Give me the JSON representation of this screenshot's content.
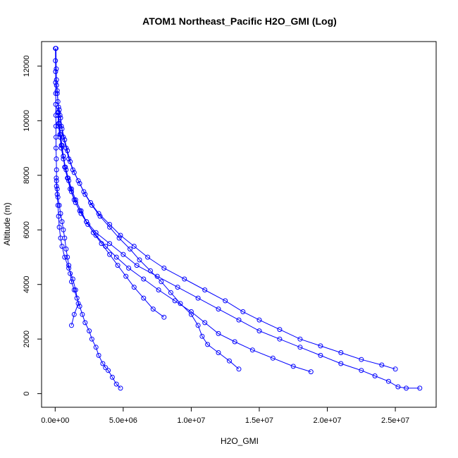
{
  "chart_data": {
    "type": "scatter",
    "title": "ATOM1 Northeast_Pacific H2O_GMI (Log)",
    "xlabel": "H2O_GMI",
    "ylabel": "Altitude (m)",
    "xlim": [
      -1000000,
      28000000
    ],
    "ylim": [
      -500,
      12900
    ],
    "x_ticks": [
      0,
      5000000,
      10000000,
      15000000,
      20000000,
      25000000
    ],
    "x_tick_labels": [
      "0.0e+00",
      "5.0e+06",
      "1.0e+07",
      "1.5e+07",
      "2.0e+07",
      "2.5e+07"
    ],
    "y_ticks": [
      0,
      2000,
      4000,
      6000,
      8000,
      10000,
      12000
    ],
    "y_tick_labels": [
      "0",
      "2000",
      "4000",
      "6000",
      "8000",
      "10000",
      "12000"
    ],
    "grid": false,
    "color": "#0000ff",
    "series": [
      {
        "points": [
          [
            4800000,
            200
          ],
          [
            4500000,
            350
          ],
          [
            4200000,
            600
          ],
          [
            3900000,
            850
          ],
          [
            3700000,
            950
          ],
          [
            3500000,
            1100
          ],
          [
            3200000,
            1400
          ],
          [
            3000000,
            1700
          ],
          [
            2700000,
            2000
          ],
          [
            2500000,
            2300
          ],
          [
            2200000,
            2600
          ],
          [
            2000000,
            2900
          ],
          [
            1800000,
            3200
          ],
          [
            1600000,
            3500
          ],
          [
            1400000,
            3800
          ],
          [
            1200000,
            4100
          ],
          [
            1100000,
            4400
          ],
          [
            1000000,
            4700
          ],
          [
            900000,
            5000
          ],
          [
            800000,
            5300
          ],
          [
            700000,
            5700
          ],
          [
            600000,
            6000
          ],
          [
            500000,
            6300
          ],
          [
            400000,
            6600
          ],
          [
            300000,
            6900
          ],
          [
            200000,
            7200
          ],
          [
            150000,
            7500
          ],
          [
            100000,
            7800
          ],
          [
            100000,
            8200
          ],
          [
            80000,
            8600
          ],
          [
            60000,
            9000
          ],
          [
            60000,
            9400
          ],
          [
            50000,
            9800
          ],
          [
            50000,
            10200
          ],
          [
            40000,
            10600
          ],
          [
            40000,
            11000
          ],
          [
            30000,
            11400
          ],
          [
            30000,
            11800
          ],
          [
            20000,
            12200
          ],
          [
            20000,
            12650
          ]
        ]
      },
      {
        "points": [
          [
            26800000,
            200
          ],
          [
            25800000,
            200
          ],
          [
            25200000,
            250
          ],
          [
            24500000,
            450
          ],
          [
            23500000,
            650
          ],
          [
            22500000,
            850
          ],
          [
            21000000,
            1100
          ],
          [
            19500000,
            1400
          ],
          [
            18000000,
            1700
          ],
          [
            16500000,
            2000
          ],
          [
            15000000,
            2300
          ],
          [
            13500000,
            2700
          ],
          [
            12000000,
            3100
          ],
          [
            10500000,
            3500
          ],
          [
            9000000,
            3900
          ],
          [
            7500000,
            4300
          ],
          [
            6000000,
            4700
          ],
          [
            5000000,
            5100
          ],
          [
            4000000,
            5500
          ],
          [
            3000000,
            5900
          ],
          [
            2300000,
            6300
          ],
          [
            1800000,
            6700
          ],
          [
            1400000,
            7100
          ],
          [
            1100000,
            7500
          ],
          [
            900000,
            7900
          ],
          [
            700000,
            8300
          ],
          [
            600000,
            8700
          ],
          [
            500000,
            9100
          ],
          [
            400000,
            9500
          ],
          [
            300000,
            9900
          ],
          [
            250000,
            10300
          ],
          [
            200000,
            10700
          ],
          [
            150000,
            11100
          ],
          [
            100000,
            11500
          ],
          [
            80000,
            11900
          ],
          [
            60000,
            12650
          ]
        ]
      },
      {
        "points": [
          [
            25000000,
            900
          ],
          [
            24000000,
            1050
          ],
          [
            22500000,
            1250
          ],
          [
            21000000,
            1500
          ],
          [
            19500000,
            1750
          ],
          [
            18000000,
            2000
          ],
          [
            16500000,
            2350
          ],
          [
            15000000,
            2700
          ],
          [
            13800000,
            3000
          ],
          [
            12500000,
            3400
          ],
          [
            11000000,
            3800
          ],
          [
            9500000,
            4200
          ],
          [
            8000000,
            4600
          ],
          [
            6800000,
            5000
          ],
          [
            5800000,
            5400
          ],
          [
            4800000,
            5800
          ],
          [
            4000000,
            6200
          ],
          [
            3200000,
            6600
          ],
          [
            2600000,
            7000
          ],
          [
            2100000,
            7400
          ],
          [
            1700000,
            7800
          ],
          [
            1300000,
            8200
          ],
          [
            1000000,
            8600
          ],
          [
            800000,
            9000
          ],
          [
            600000,
            9400
          ],
          [
            450000,
            9800
          ],
          [
            350000,
            10200
          ],
          [
            250000,
            10500
          ],
          [
            150000,
            11000
          ],
          [
            100000,
            11300
          ]
        ]
      },
      {
        "points": [
          [
            13500000,
            900
          ],
          [
            12800000,
            1200
          ],
          [
            12000000,
            1500
          ],
          [
            11200000,
            1800
          ],
          [
            10800000,
            2100
          ],
          [
            10500000,
            2500
          ],
          [
            10000000,
            2900
          ],
          [
            9200000,
            3300
          ],
          [
            8500000,
            3700
          ],
          [
            7800000,
            4100
          ],
          [
            7000000,
            4500
          ],
          [
            6200000,
            4900
          ],
          [
            5500000,
            5300
          ],
          [
            4700000,
            5700
          ],
          [
            4000000,
            6100
          ],
          [
            3300000,
            6500
          ],
          [
            2700000,
            6900
          ],
          [
            2200000,
            7300
          ],
          [
            1800000,
            7700
          ],
          [
            1400000,
            8100
          ],
          [
            1100000,
            8500
          ],
          [
            900000,
            8900
          ],
          [
            700000,
            9300
          ],
          [
            500000,
            9700
          ],
          [
            400000,
            10100
          ],
          [
            300000,
            10400
          ]
        ]
      },
      {
        "points": [
          [
            18800000,
            800
          ],
          [
            17500000,
            1000
          ],
          [
            16000000,
            1300
          ],
          [
            14500000,
            1600
          ],
          [
            13200000,
            1900
          ],
          [
            12000000,
            2200
          ],
          [
            11000000,
            2600
          ],
          [
            10000000,
            3000
          ],
          [
            8800000,
            3400
          ],
          [
            7600000,
            3800
          ],
          [
            6500000,
            4200
          ],
          [
            5400000,
            4600
          ],
          [
            4500000,
            5000
          ],
          [
            3700000,
            5400
          ],
          [
            3000000,
            5800
          ],
          [
            2400000,
            6200
          ],
          [
            1900000,
            6600
          ],
          [
            1500000,
            7000
          ],
          [
            1200000,
            7400
          ],
          [
            1000000,
            7800
          ],
          [
            800000,
            8200
          ],
          [
            600000,
            8600
          ],
          [
            450000,
            9000
          ],
          [
            350000,
            9400
          ],
          [
            250000,
            9800
          ],
          [
            200000,
            10200
          ]
        ]
      },
      {
        "points": [
          [
            8000000,
            2800
          ],
          [
            7200000,
            3100
          ],
          [
            6500000,
            3500
          ],
          [
            5800000,
            3900
          ],
          [
            5200000,
            4300
          ],
          [
            4600000,
            4700
          ],
          [
            4000000,
            5100
          ],
          [
            3400000,
            5500
          ],
          [
            2800000,
            5900
          ],
          [
            2300000,
            6300
          ],
          [
            1900000,
            6700
          ],
          [
            1500000,
            7100
          ],
          [
            1200000,
            7500
          ],
          [
            950000,
            7900
          ],
          [
            750000,
            8300
          ],
          [
            600000,
            8700
          ],
          [
            450000,
            9100
          ],
          [
            350000,
            9500
          ],
          [
            250000,
            9900
          ],
          [
            180000,
            10300
          ]
        ]
      },
      {
        "points": [
          [
            1200000,
            2500
          ],
          [
            1400000,
            2900
          ],
          [
            1700000,
            3300
          ],
          [
            1500000,
            3800
          ],
          [
            1300000,
            4200
          ],
          [
            1000000,
            4600
          ],
          [
            700000,
            5000
          ],
          [
            500000,
            5400
          ],
          [
            400000,
            5700
          ],
          [
            300000,
            6100
          ],
          [
            250000,
            6500
          ],
          [
            200000,
            6900
          ],
          [
            150000,
            7300
          ],
          [
            100000,
            7600
          ],
          [
            80000,
            7900
          ]
        ]
      }
    ]
  }
}
